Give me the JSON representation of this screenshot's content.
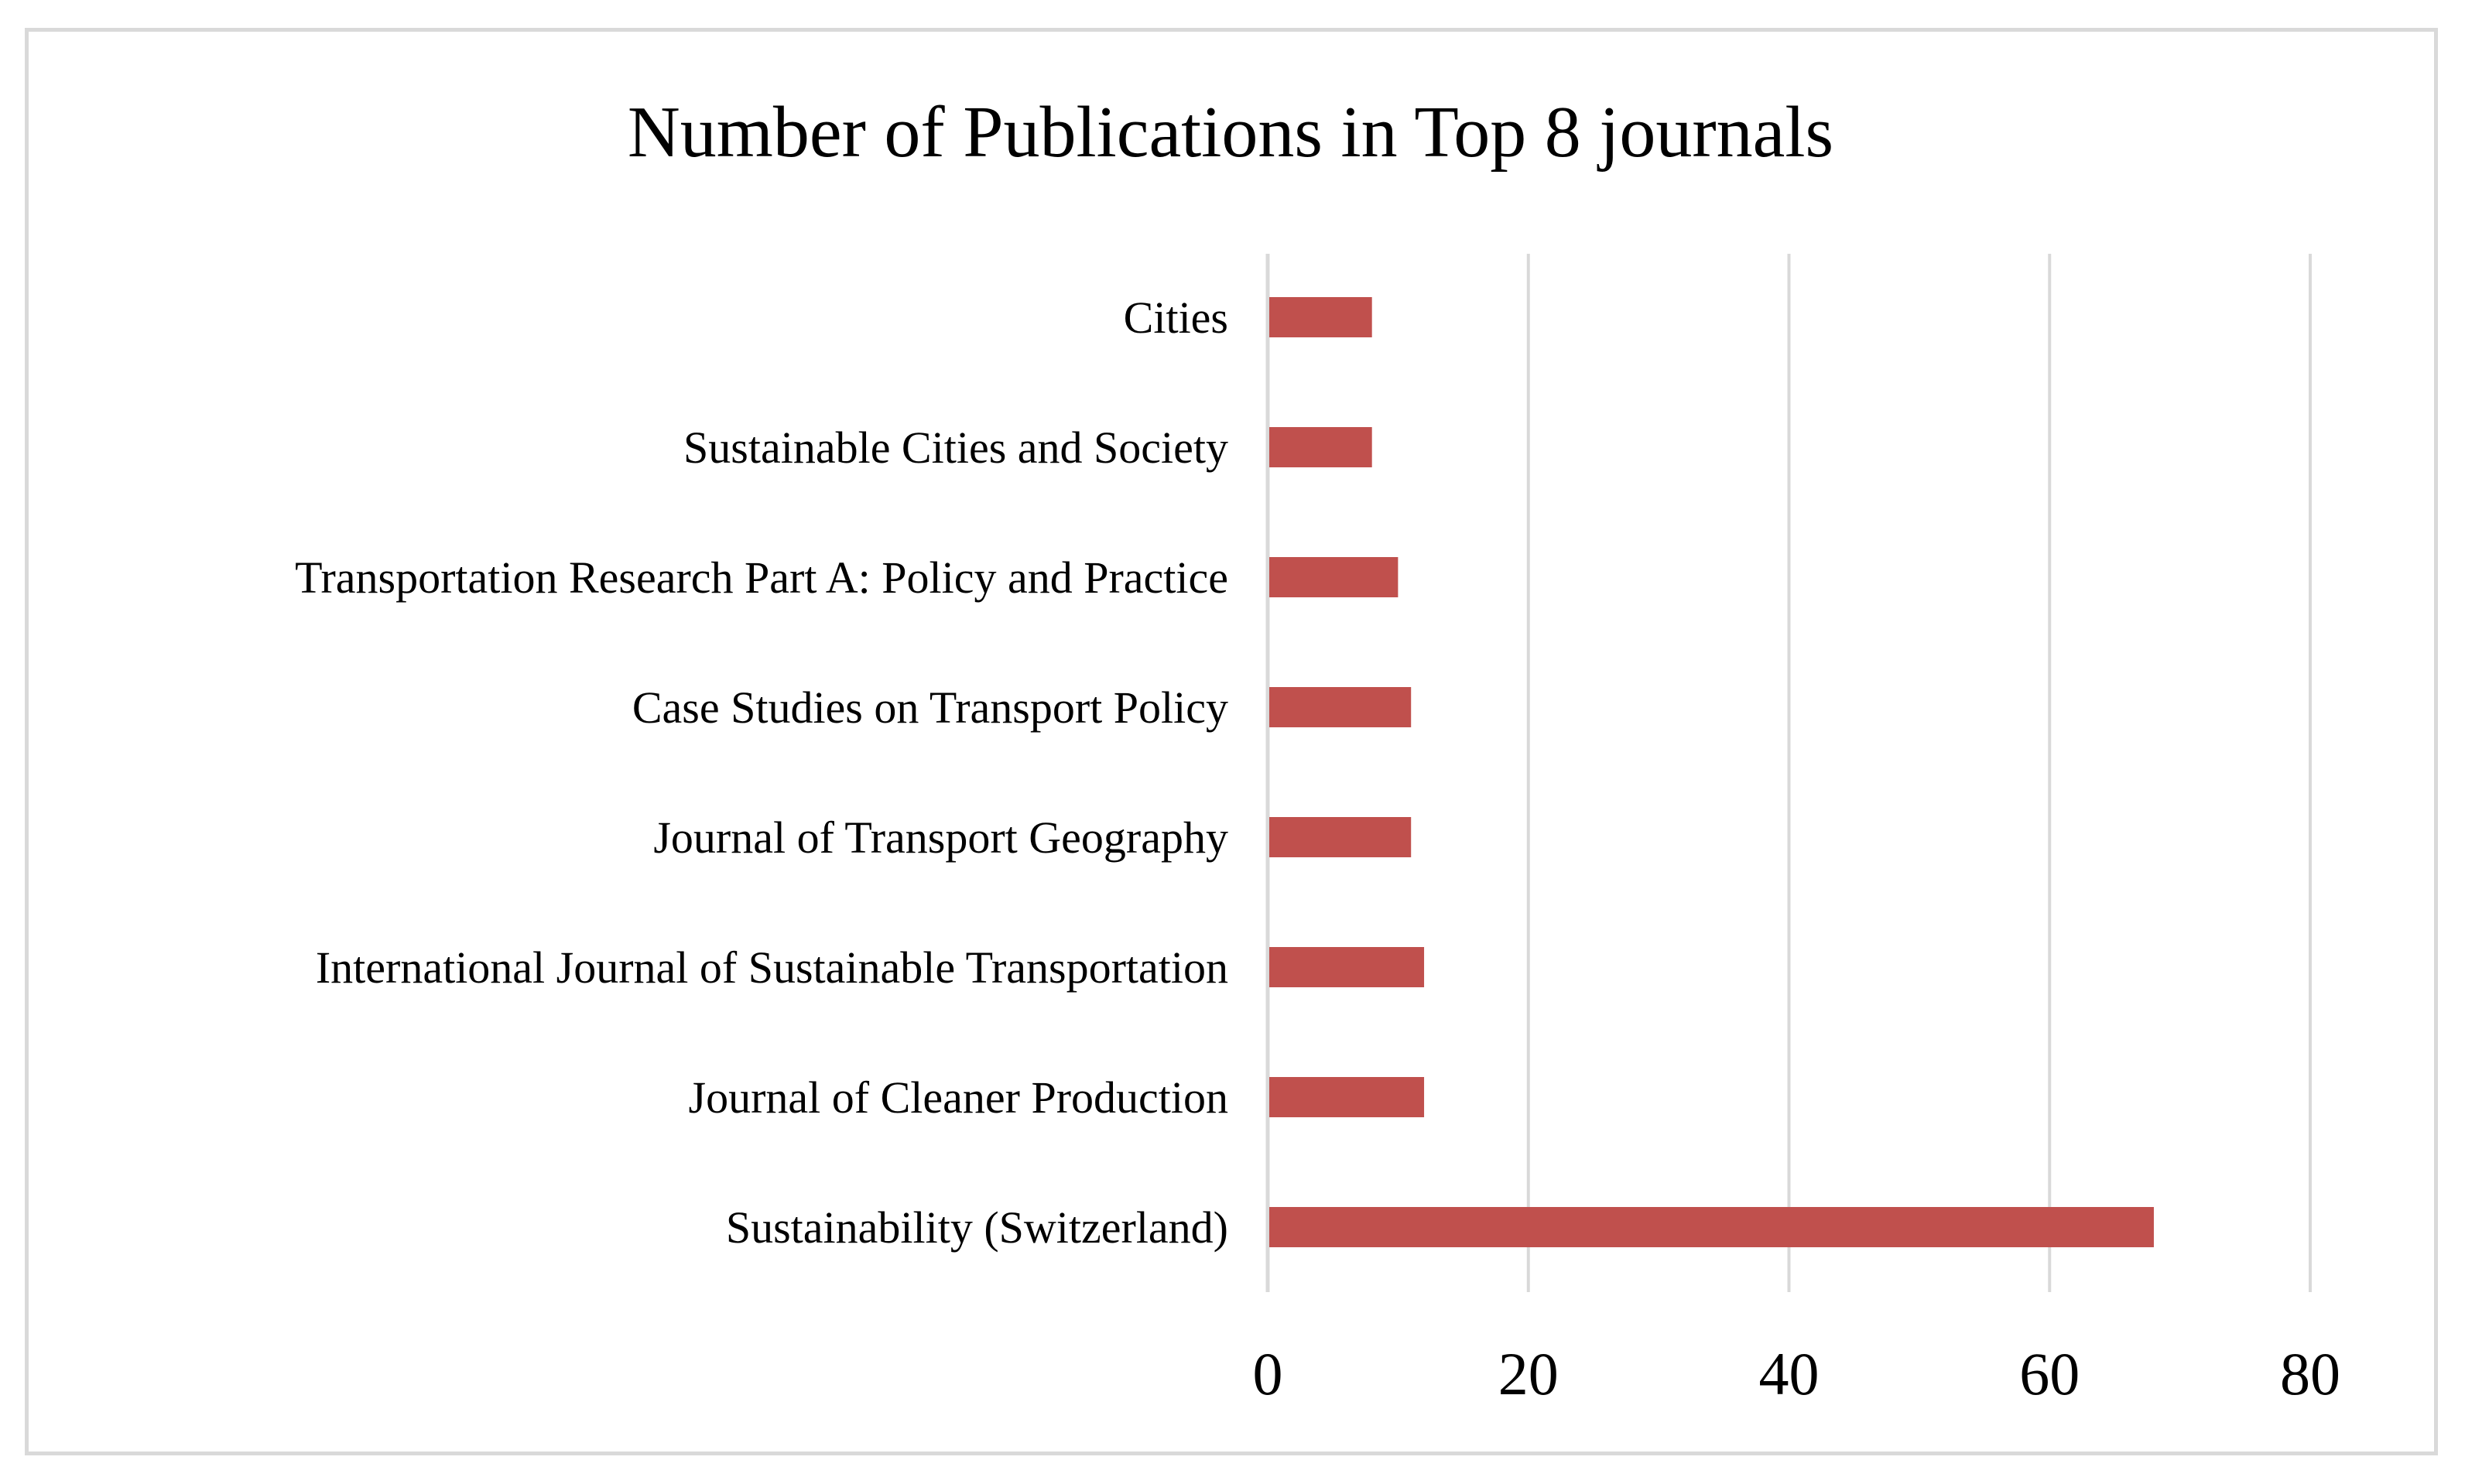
{
  "chart_data": {
    "type": "bar",
    "orientation": "horizontal",
    "title": "Number of Publications in Top 8 journals",
    "categories": [
      "Cities",
      "Sustainable Cities and Society",
      "Transportation Research Part A: Policy and Practice",
      "Case Studies on Transport Policy",
      "Journal of Transport Geography",
      "International Journal of Sustainable Transportation",
      "Journal of Cleaner Production",
      "Sustainability (Switzerland)"
    ],
    "values": [
      8,
      8,
      10,
      11,
      11,
      12,
      12,
      68
    ],
    "xlim": [
      0,
      80
    ],
    "xticks": [
      0,
      20,
      40,
      60,
      80
    ],
    "xtick_labels": [
      "0",
      "20",
      "40",
      "60",
      "80"
    ],
    "xlabel": "",
    "ylabel": "",
    "grid": "vertical",
    "legend": "none",
    "bar_color": "#c0504d",
    "grid_color": "#d9d9d9"
  }
}
